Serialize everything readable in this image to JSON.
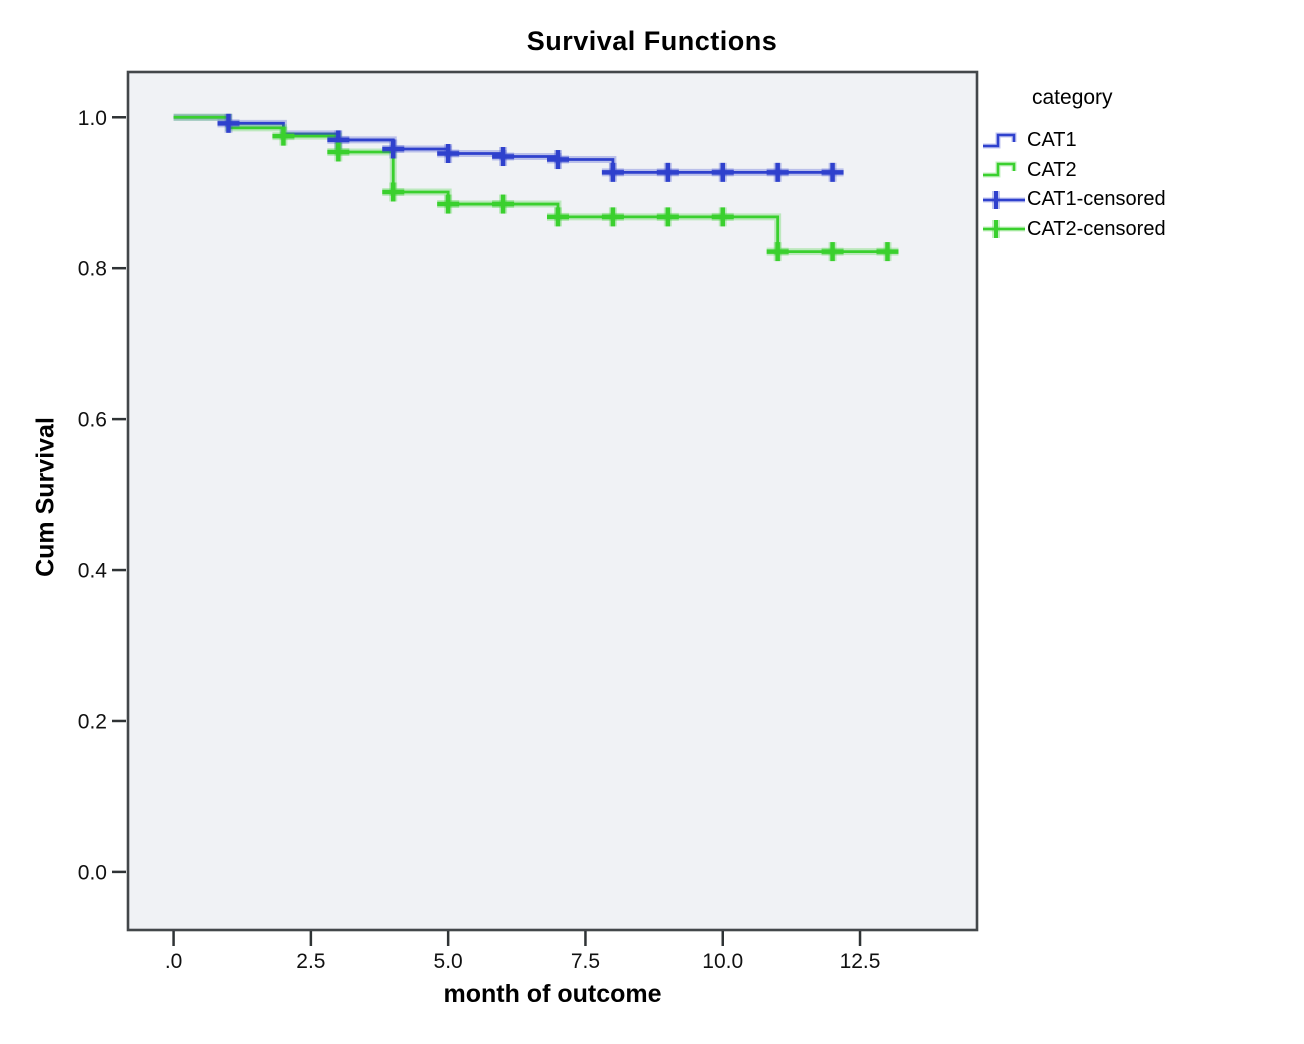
{
  "chart_data": {
    "type": "line",
    "subtype": "kaplan-meier-step-function",
    "title": "Survival Functions",
    "xlabel": "month of outcome",
    "ylabel": "Cum Survival",
    "x_ticks": {
      "values": [
        0,
        2.5,
        5,
        7.5,
        10,
        12.5
      ],
      "labels": [
        ".0",
        "2.5",
        "5.0",
        "7.5",
        "10.0",
        "12.5"
      ]
    },
    "y_ticks": {
      "values": [
        1.0,
        0.8,
        0.6,
        0.4,
        0.2,
        0.0
      ],
      "labels": [
        "1.0",
        "0.8",
        "0.6",
        "0.4",
        "0.2",
        "0.0"
      ]
    },
    "xlim": [
      -0.83,
      14.63
    ],
    "ylim": [
      -0.077,
      1.06
    ],
    "grid": false,
    "plot_background": "#f0f2f5",
    "frame_color": "#43474a",
    "tick_color": "#2f3335",
    "legend": {
      "title": "category",
      "position": "right",
      "entries": [
        {
          "label": "CAT1",
          "symbol": "step",
          "color": "#2f41cd"
        },
        {
          "label": "CAT2",
          "symbol": "step",
          "color": "#3ad02e"
        },
        {
          "label": "CAT1-censored",
          "symbol": "plus",
          "color": "#2f41cd"
        },
        {
          "label": "CAT2-censored",
          "symbol": "plus",
          "color": "#3ad02e"
        }
      ]
    },
    "series": [
      {
        "name": "CAT1",
        "color": "#2f41cd",
        "steps": [
          [
            0,
            1.0
          ],
          [
            1,
            0.992
          ],
          [
            2,
            0.978
          ],
          [
            3,
            0.97
          ],
          [
            4,
            0.958
          ],
          [
            5,
            0.952
          ],
          [
            6,
            0.948
          ],
          [
            7,
            0.944
          ],
          [
            8,
            0.927
          ]
        ],
        "end_x": 12,
        "censored": [
          [
            1,
            0.992
          ],
          [
            3,
            0.97
          ],
          [
            4,
            0.958
          ],
          [
            5,
            0.952
          ],
          [
            6,
            0.948
          ],
          [
            7,
            0.944
          ],
          [
            8,
            0.927
          ],
          [
            9,
            0.927
          ],
          [
            10,
            0.927
          ],
          [
            11,
            0.927
          ],
          [
            12,
            0.927
          ]
        ]
      },
      {
        "name": "CAT2",
        "color": "#3ad02e",
        "steps": [
          [
            0,
            1.0
          ],
          [
            1,
            0.986
          ],
          [
            2,
            0.975
          ],
          [
            3,
            0.954
          ],
          [
            4,
            0.901
          ],
          [
            5,
            0.885
          ],
          [
            7,
            0.868
          ],
          [
            11,
            0.822
          ]
        ],
        "end_x": 13,
        "censored": [
          [
            2,
            0.975
          ],
          [
            3,
            0.954
          ],
          [
            4,
            0.901
          ],
          [
            5,
            0.885
          ],
          [
            6,
            0.885
          ],
          [
            7,
            0.868
          ],
          [
            8,
            0.868
          ],
          [
            9,
            0.868
          ],
          [
            10,
            0.868
          ],
          [
            11,
            0.822
          ],
          [
            12,
            0.822
          ],
          [
            13,
            0.822
          ]
        ]
      }
    ]
  }
}
